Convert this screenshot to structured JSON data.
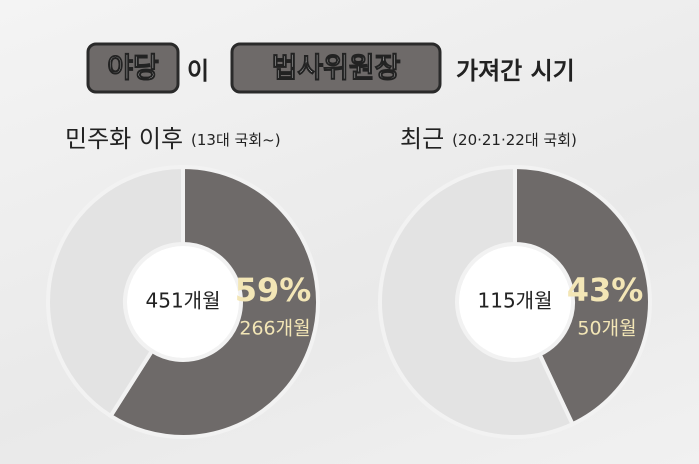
{
  "header": {
    "title_parts": [
      "야당",
      "이",
      "법사위원장",
      "가져간 시기"
    ]
  },
  "chart_data": [
    {
      "type": "pie",
      "title": "민주화 이후",
      "subtitle": "(13대 국회~)",
      "center_label": "451개월",
      "categories": [
        null,
        null
      ],
      "values": [
        59,
        41
      ],
      "value_labels": [
        "59%",
        null
      ],
      "detail_label": "266개월",
      "colors": [
        "#6e6a69",
        "#e3e3e3"
      ]
    },
    {
      "type": "pie",
      "title": "최근",
      "subtitle": "(20·21·22대 국회)",
      "center_label": "115개월",
      "categories": [
        null,
        null
      ],
      "values": [
        43,
        57
      ],
      "value_labels": [
        "43%",
        null
      ],
      "detail_label": "50개월",
      "colors": [
        "#6e6a69",
        "#e3e3e3"
      ]
    }
  ]
}
